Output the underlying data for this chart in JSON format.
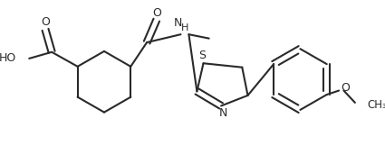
{
  "bg_color": "#ffffff",
  "line_color": "#2a2a2a",
  "line_width": 1.5,
  "figsize": [
    4.25,
    1.62
  ],
  "dpi": 100,
  "xlim": [
    0,
    425
  ],
  "ylim": [
    0,
    162
  ]
}
